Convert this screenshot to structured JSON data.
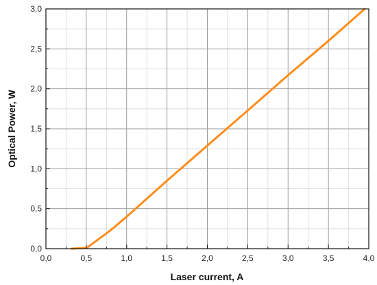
{
  "chart_data": {
    "type": "line",
    "xlabel": "Laser current, A",
    "ylabel": "Optical Power, W",
    "xlim": [
      0.0,
      4.0
    ],
    "ylim": [
      0.0,
      3.0
    ],
    "x_ticks": [
      "0,0",
      "0,5",
      "1,0",
      "1,5",
      "2,0",
      "2,5",
      "3,0",
      "3,5",
      "4,0"
    ],
    "y_ticks": [
      "0,0",
      "0,5",
      "1,0",
      "1,5",
      "2,0",
      "2,5",
      "3,0"
    ],
    "x_tick_values": [
      0.0,
      0.5,
      1.0,
      1.5,
      2.0,
      2.5,
      3.0,
      3.5,
      4.0
    ],
    "y_tick_values": [
      0.0,
      0.5,
      1.0,
      1.5,
      2.0,
      2.5,
      3.0
    ],
    "grid": true,
    "series": [
      {
        "color": "#ff8c1a",
        "x": [
          0.32,
          0.5,
          0.52,
          0.6,
          0.8,
          1.0,
          1.5,
          2.0,
          2.5,
          3.0,
          3.5,
          3.95
        ],
        "y": [
          0.0,
          0.01,
          0.02,
          0.08,
          0.23,
          0.4,
          0.85,
          1.29,
          1.73,
          2.17,
          2.6,
          3.0
        ]
      }
    ]
  }
}
